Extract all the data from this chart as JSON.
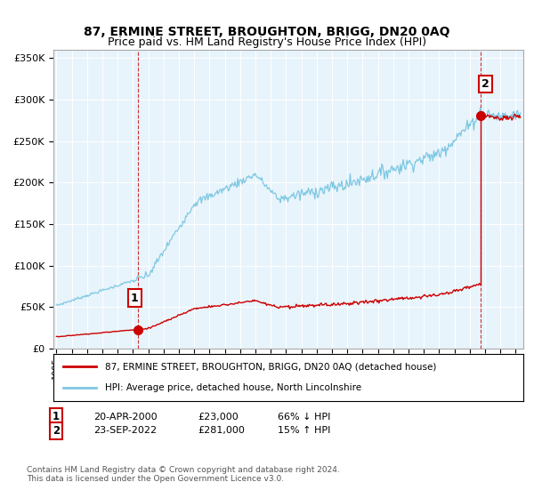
{
  "title": "87, ERMINE STREET, BROUGHTON, BRIGG, DN20 0AQ",
  "subtitle": "Price paid vs. HM Land Registry's House Price Index (HPI)",
  "ylabel_ticks": [
    "£0",
    "£50K",
    "£100K",
    "£150K",
    "£200K",
    "£250K",
    "£300K",
    "£350K"
  ],
  "ytick_values": [
    0,
    50000,
    100000,
    150000,
    200000,
    250000,
    300000,
    350000
  ],
  "ylim": [
    0,
    360000
  ],
  "xlim_start": 1994.8,
  "xlim_end": 2025.5,
  "sale1_date": 2000.3,
  "sale1_price": 23000,
  "sale1_label": "1",
  "sale2_date": 2022.72,
  "sale2_price": 281000,
  "sale2_label": "2",
  "hpi_color": "#7ec8e3",
  "sale_color": "#cc0000",
  "plot_bg_color": "#e8f4fb",
  "legend_property": "87, ERMINE STREET, BROUGHTON, BRIGG, DN20 0AQ (detached house)",
  "legend_hpi": "HPI: Average price, detached house, North Lincolnshire",
  "footer": "Contains HM Land Registry data © Crown copyright and database right 2024.\nThis data is licensed under the Open Government Licence v3.0.",
  "marker_box_color": "#cc0000",
  "title_fontsize": 10,
  "tick_fontsize": 8,
  "legend_fontsize": 7.5
}
